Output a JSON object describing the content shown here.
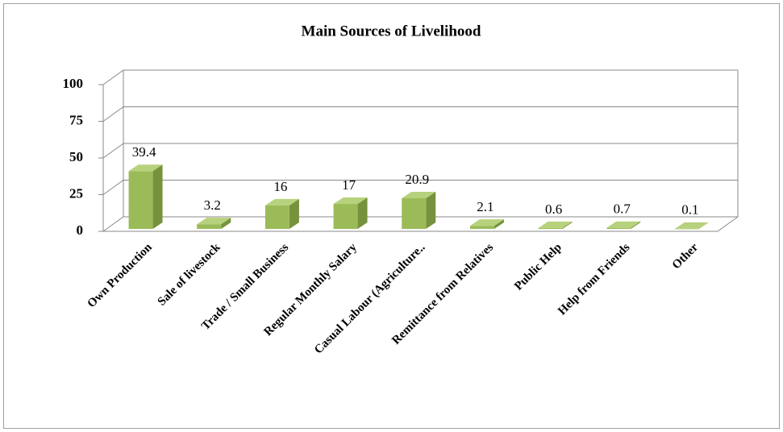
{
  "chart_data": {
    "type": "bar3d",
    "title": "Main Sources of Livelihood",
    "categories": [
      "Own Production",
      "Sale of livestock",
      "Trade / Small Business",
      "Regular Monthly Salary",
      "Casual Labour  (Agriculture..",
      "Remittance from Relatives",
      "Public Help",
      "Help from Friends",
      "Other"
    ],
    "values": [
      39.4,
      3.2,
      16,
      17,
      20.9,
      2.1,
      0.6,
      0.7,
      0.1
    ],
    "color": "#9bbb59",
    "ylim": [
      0,
      100
    ],
    "yticks": [
      0,
      25,
      50,
      75,
      100
    ],
    "grid": true
  }
}
